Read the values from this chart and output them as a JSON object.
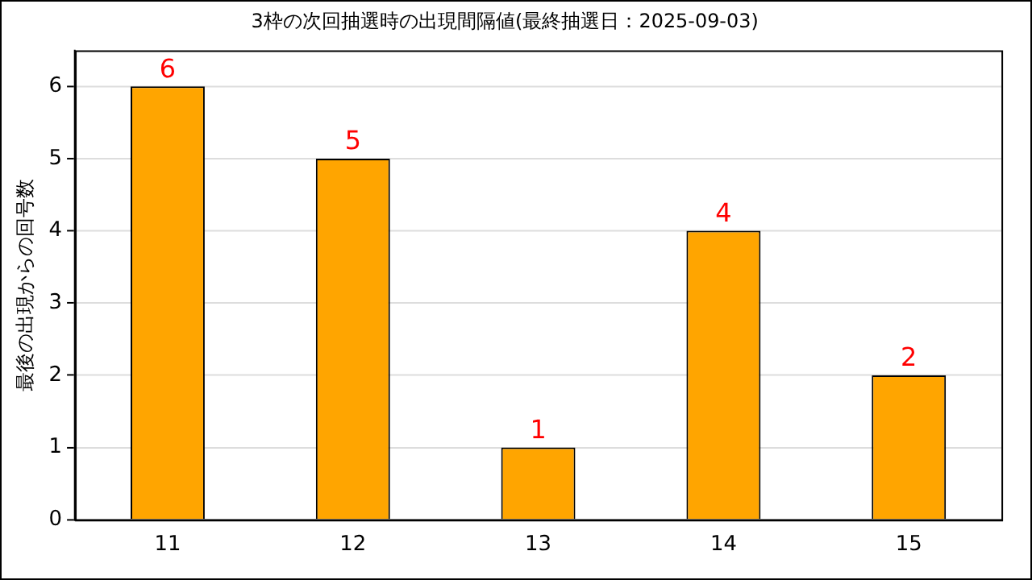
{
  "chart_data": {
    "type": "bar",
    "title": "3枠の次回抽選時の出現間隔値(最終抽選日：2025-09-03)",
    "ylabel": "最後の出現からの回号数",
    "categories": [
      "11",
      "12",
      "13",
      "14",
      "15"
    ],
    "values": [
      6,
      5,
      1,
      4,
      2
    ],
    "color": "#ffa500",
    "ylim": [
      0,
      6.5
    ],
    "yticks": [
      0,
      1,
      2,
      3,
      4,
      5,
      6
    ],
    "grid": "y",
    "data_labels": true,
    "legend": false
  }
}
